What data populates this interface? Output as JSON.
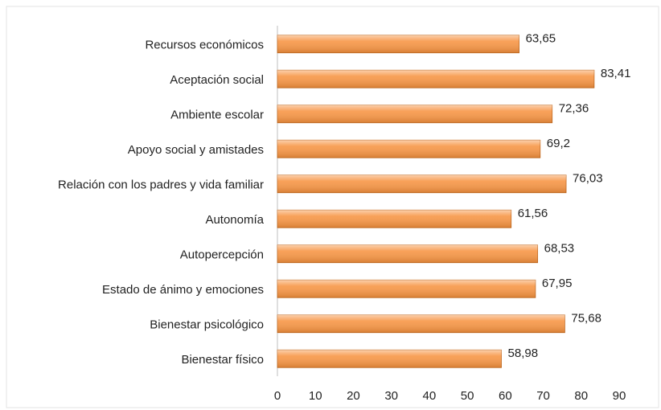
{
  "chart_data": {
    "type": "bar",
    "orientation": "horizontal",
    "categories": [
      "Recursos económicos",
      "Aceptación social",
      "Ambiente escolar",
      "Apoyo social y amistades",
      "Relación con los padres y vida familiar",
      "Autonomía",
      "Autopercepción",
      "Estado de ánimo y emociones",
      "Bienestar psicológico",
      "Bienestar físico"
    ],
    "values": [
      63.65,
      83.41,
      72.36,
      69.2,
      76.03,
      61.56,
      68.53,
      67.95,
      75.68,
      58.98
    ],
    "value_labels": [
      "63,65",
      "83,41",
      "72,36",
      "69,2",
      "76,03",
      "61,56",
      "68,53",
      "67,95",
      "75,68",
      "58,98"
    ],
    "color": "#f79646",
    "xlim": [
      0,
      90
    ],
    "xticks": [
      0,
      10,
      20,
      30,
      40,
      50,
      60,
      70,
      80,
      90
    ],
    "grid": false
  }
}
